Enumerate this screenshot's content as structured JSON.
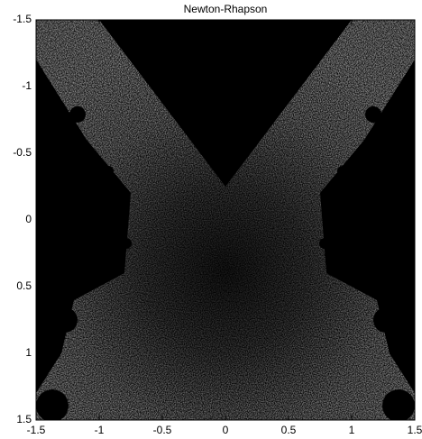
{
  "chart_data": {
    "type": "image",
    "title": "Newton-Rhapson",
    "xlim": [
      -1.5,
      1.5
    ],
    "ylim": [
      -1.5,
      1.5
    ],
    "y_reversed": true,
    "xticks": [
      -1.5,
      -1,
      -0.5,
      0,
      0.5,
      1,
      1.5
    ],
    "yticks": [
      -1.5,
      -1,
      -0.5,
      0,
      0.5,
      1,
      1.5
    ]
  }
}
